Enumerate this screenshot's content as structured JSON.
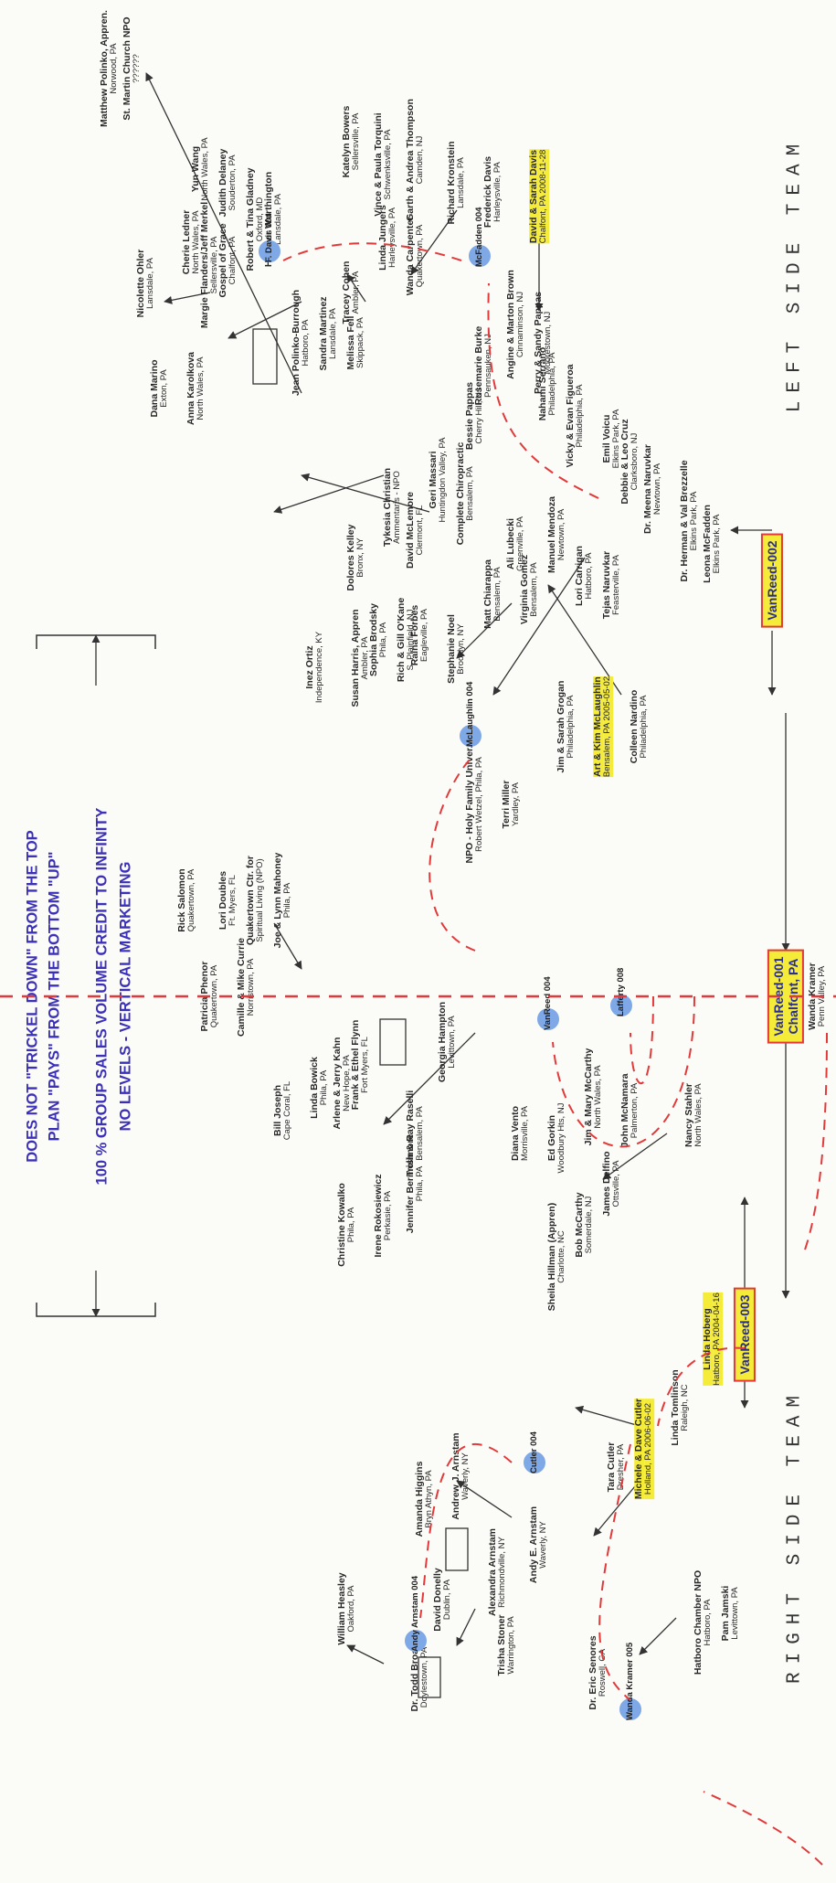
{
  "titles": {
    "left": "LEFT SIDE TEAM",
    "right": "RIGHT SIDE TEAM"
  },
  "messages": {
    "line1": "NO LEVELS - VERTICAL MARKETING",
    "line2": "100 % GROUP SALES VOLUME CREDIT TO INFINITY",
    "line3": "PLAN \"PAYS\" FROM THE BOTTOM \"UP\"",
    "line4": "DOES NOT \"TRICKEL DOWN\" FROM THE TOP"
  },
  "hubs": {
    "top": {
      "l1": "VanReed-001",
      "l2": "Chalfont, PA"
    },
    "left": {
      "l1": "VanReed-002"
    },
    "right": {
      "l1": "VanReed-003"
    }
  },
  "markers": {
    "mcfadden": "McFadden 004",
    "davis": "F. Davis 004",
    "mclaughlin": "McLaughlin 004",
    "lafferty": "Lafferty 008",
    "vanreed": "VanReed 004",
    "cutler": "Cutler 004",
    "arnstam": "Andy Arnstam 004",
    "kramer": "Wanda Kramer 005"
  },
  "people": {
    "p01": {
      "l1": "Wanda Kramer",
      "l2": "Penn Valley, PA"
    },
    "p02": {
      "l1": "Leona McFadden",
      "l2": "Elkins Park, PA"
    },
    "p03": {
      "l1": "Dr. Herman & Val Brezzelle",
      "l2": "Elkins Park, PA"
    },
    "p04": {
      "l1": "Dr. Meena Naruvkar",
      "l2": "Newtown, PA"
    },
    "p05": {
      "l1": "Debbie & Leo Cruz",
      "l2": "Clarksboro, NJ"
    },
    "p06": {
      "l1": "Emil Voicu",
      "l2": "Elkins Park, PA"
    },
    "p07": {
      "l1": "Vicky & Evan Figueroa",
      "l2": "Philadelphia, PA"
    },
    "p08": {
      "l1": "Nahami Serrano",
      "l2": "Philadelphia, PA"
    },
    "p09": {
      "l1": "Tejas Naruvkar",
      "l2": "Feasterville, PA"
    },
    "p10": {
      "l1": "Lori Carrigan",
      "l2": "Hatboro, PA"
    },
    "p11": {
      "l1": "Manuel Mendoza",
      "l2": "Newtown, PA"
    },
    "p12": {
      "l1": "Virginia Gomez",
      "l2": "Bensalem, PA"
    },
    "p13": {
      "l1": "Ali Lubecki",
      "l2": "Greenville, PA"
    },
    "p14": {
      "l1": "Matt Chiarappa",
      "l2": "Bensalem, PA"
    },
    "p15": {
      "l1": "Complete Chiropractic",
      "l2": "Bensalem, PA"
    },
    "p16": {
      "l1": "Geri Massari",
      "l2": "Huntingdon Valley, PA"
    },
    "p17": {
      "l1": "David McLemore",
      "l2": "Clermont, FL"
    },
    "p18": {
      "l1": "Tykesia Christian",
      "l2": "Ammentaris - NPO"
    },
    "p19": {
      "l1": "Dolores Kelley",
      "l2": "Bronx, NY"
    },
    "p20": {
      "l1": "Perry & Sandy Pappas",
      "l2": "Moorestown, NJ"
    },
    "p21": {
      "l1": "Angine & Marton Brown",
      "l2": "Cinnaminson, NJ"
    },
    "p22": {
      "l1": "Rosemarie Burke",
      "l2": "Pennsauken, NJ"
    },
    "p23": {
      "l1": "Bessie Pappas",
      "l2": "Cherry Hill, NJ"
    },
    "p24": {
      "l1": "David & Sarah Davis",
      "l2": "Chalfont, PA 2008-11-28"
    },
    "p25": {
      "l1": "Frederick Davis",
      "l2": "Harleysville, PA"
    },
    "p26": {
      "l1": "Richard Kronstein",
      "l2": "Lansdale, PA"
    },
    "p27": {
      "l1": "Garth & Andrea Thompson",
      "l2": "Camden, NJ"
    },
    "p28": {
      "l1": "Wanda Carpenter",
      "l2": "Quakertown, PA"
    },
    "p29": {
      "l1": "Vince & Paula Torquini",
      "l2": "Schwenksville, PA"
    },
    "p30": {
      "l1": "Katelyn Bowers",
      "l2": "Sellersville, PA"
    },
    "p31": {
      "l1": "Linda Jungers",
      "l2": "Harleysville, PA"
    },
    "p32": {
      "l1": "Tracey Cohen",
      "l2": "Ambler, PA"
    },
    "p33": {
      "l1": "Melissa Fell",
      "l2": "Skippack, PA"
    },
    "p34": {
      "l1": "Sandra Martinez",
      "l2": "Lansdale, PA"
    },
    "p35": {
      "l1": "Jean Polinko-Burrough",
      "l2": "Hatboro, PA"
    },
    "p36": {
      "l1": "Heather Worthington",
      "l2": "Lansdale, PA"
    },
    "p37": {
      "l1": "Robert & Tina Gladney",
      "l2": "Oxford, MD"
    },
    "p38": {
      "l1": "Judith Delaney",
      "l2": "Souderton, PA"
    },
    "p39": {
      "l1": "Yun Wang",
      "l2": "North Wales, PA"
    },
    "p40": {
      "l1": "Gospel of Grace",
      "l2": "Chalfont, PA"
    },
    "p41": {
      "l1": "Margie Flanders/Jeff Merkel",
      "l2": "Sellersville, PA"
    },
    "p42": {
      "l1": "Cherie Ledner",
      "l2": "North Wales, PA"
    },
    "p43": {
      "l1": "Nicolette Ohler",
      "l2": "Lansdale, PA"
    },
    "p44": {
      "l1": "St. Martin Church NPO",
      "l2": "??????"
    },
    "p45": {
      "l1": "Matthew Polinko, Appren.",
      "l2": "Norwood, PA"
    },
    "p46": {
      "l1": "Anna Karolkova",
      "l2": "North Wales, PA"
    },
    "p47": {
      "l1": "Dana Marino",
      "l2": "Exton, PA"
    },
    "p48": {
      "l1": "Colleen Nardino",
      "l2": "Philadelphia, PA"
    },
    "p49": {
      "l1": "Art & Kim McLaughlin",
      "l2": "Bensalem, PA 2005-05-02"
    },
    "p50": {
      "l1": "Jim & Sarah Grogan",
      "l2": "Philadelphia, PA"
    },
    "p51": {
      "l1": "Terri Miller",
      "l2": "Yardley, PA"
    },
    "p52": {
      "l1": "NPO - Holy Family Univer.",
      "l2": "Robert Wetzel, Phila, PA"
    },
    "p53": {
      "l1": "Stephanie Noel",
      "l2": "Brooklyn, NY"
    },
    "p54": {
      "l1": "Raina Forbes",
      "l2": "Eagleville, PA"
    },
    "p55": {
      "l1": "Rich & Gill O'Kane",
      "l2": "S. Plainfield, NJ"
    },
    "p56": {
      "l1": "Sophia Brodsky",
      "l2": "Phila, PA"
    },
    "p57": {
      "l1": "Susan Harris, Appren",
      "l2": "Ambler, PA"
    },
    "p58": {
      "l1": "Inez Ortiz",
      "l2": "Independence, KY"
    },
    "p59": {
      "l1": "Joe & Lynn Mahoney",
      "l2": "Phila, PA"
    },
    "p60": {
      "l1": "Quakertown Ctr. for",
      "l2": "Spiritual Living (NPO)"
    },
    "p61": {
      "l1": "Lori Doubles",
      "l2": "Ft. Myers, FL"
    },
    "p62": {
      "l1": "Rick Salomon",
      "l2": "Quakertown, PA"
    },
    "p63": {
      "l1": "Camille & Mike Currie",
      "l2": "Norristown, PA"
    },
    "p64": {
      "l1": "Patricia Phenor",
      "l2": "Quakertown, PA"
    },
    "p65": {
      "l1": "Georgia Hampton",
      "l2": "Levittown, PA"
    },
    "p66": {
      "l1": "Frank & Ethel Flynn",
      "l2": "Fort Myers, FL"
    },
    "p67": {
      "l1": "Arlene & Jerry Kahn",
      "l2": "New Hope, PA"
    },
    "p68": {
      "l1": "Linda Bowick",
      "l2": "Phila, PA"
    },
    "p69": {
      "l1": "Bill Joseph",
      "l2": "Cape Coral, FL"
    },
    "p70": {
      "l1": "Trish & Ray Raselli",
      "l2": "Bensalem, PA"
    },
    "p71": {
      "l1": "John McNamara",
      "l2": "Palmerton, PA"
    },
    "p72": {
      "l1": "Jim & Mary McCarthy",
      "l2": "North Wales, PA"
    },
    "p73": {
      "l1": "Ed Gorkin",
      "l2": "Woodbury Hts, NJ"
    },
    "p74": {
      "l1": "Diana Vento",
      "l2": "Morrisville, PA"
    },
    "p75": {
      "l1": "Jennifer Bermolimore",
      "l2": "Phila, PA"
    },
    "p76": {
      "l1": "Irene Rokosiewicz",
      "l2": "Perkasie, PA"
    },
    "p77": {
      "l1": "Christine Kowalko",
      "l2": "Phila, PA"
    },
    "p78": {
      "l1": "Nancy Stahler",
      "l2": "North Wales, PA"
    },
    "p79": {
      "l1": "James Delfino",
      "l2": "Ottsville, PA"
    },
    "p80": {
      "l1": "Bob McCarthy",
      "l2": "Somerdale, NJ"
    },
    "p81": {
      "l1": "Sheila Hillman (Appren)",
      "l2": "Charlotte, NC"
    },
    "p82": {
      "l1": "Linda Hoberg",
      "l2": "Hatboro, PA 2004-04-16"
    },
    "p83": {
      "l1": "Linda Tomlinson",
      "l2": "Raleigh, NC"
    },
    "p84": {
      "l1": "Michele & Dave Cutler",
      "l2": "Holland, PA 2006-06-02"
    },
    "p85": {
      "l1": "Tara Cutler",
      "l2": "Dresher, PA"
    },
    "p86": {
      "l1": "Pam Jamski",
      "l2": "Levittown, PA"
    },
    "p87": {
      "l1": "Hatboro Chamber NPO",
      "l2": "Hatboro, PA"
    },
    "p88": {
      "l1": "Dr. Eric Senores",
      "l2": "Roswell, GA"
    },
    "p89": {
      "l1": "Andy E. Arnstam",
      "l2": "Waverly, NY"
    },
    "p90": {
      "l1": "Andrew J. Arnstam",
      "l2": "Waverly, NY"
    },
    "p91": {
      "l1": "Alexandra Arnstam",
      "l2": "Richmondville, NY"
    },
    "p92": {
      "l1": "Trisha Stoner",
      "l2": "Warrington, PA"
    },
    "p93": {
      "l1": "David Donelly",
      "l2": "Dublin, PA"
    },
    "p94": {
      "l1": "Dr. Todd Broad",
      "l2": "Doylestown, PA"
    },
    "p95": {
      "l1": "Amanda Higgins",
      "l2": "Bryn Athyn, PA"
    },
    "p96": {
      "l1": "William Heasley",
      "l2": "Oakford, PA"
    }
  }
}
